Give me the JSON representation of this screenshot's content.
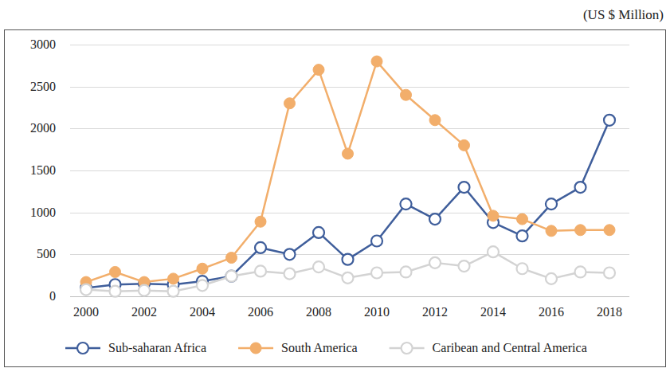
{
  "chart_data": {
    "type": "line",
    "ylabel": "(US $ Million)",
    "x": [
      2000,
      2001,
      2002,
      2003,
      2004,
      2005,
      2006,
      2007,
      2008,
      2009,
      2010,
      2011,
      2012,
      2013,
      2014,
      2015,
      2016,
      2017,
      2018
    ],
    "series": [
      {
        "name": "Sub-saharan Africa",
        "color": "#3f5e9b",
        "marker": "open_circle",
        "values": [
          100,
          140,
          150,
          140,
          180,
          240,
          580,
          500,
          760,
          440,
          660,
          1100,
          920,
          1300,
          880,
          720,
          1100,
          1300,
          2100
        ]
      },
      {
        "name": "South America",
        "color": "#f2ae6b",
        "marker": "circle",
        "values": [
          170,
          290,
          170,
          210,
          330,
          460,
          890,
          2300,
          2700,
          1700,
          2800,
          2400,
          2100,
          1800,
          960,
          920,
          780,
          790,
          790
        ]
      },
      {
        "name": "Caribean and Central America",
        "color": "#d3d3d3",
        "marker": "open_circle",
        "values": [
          80,
          60,
          70,
          60,
          130,
          240,
          300,
          270,
          350,
          220,
          280,
          290,
          400,
          360,
          530,
          330,
          210,
          290,
          280
        ]
      }
    ],
    "xlim": [
      2000,
      2018
    ],
    "xticks": [
      2000,
      2002,
      2004,
      2006,
      2008,
      2010,
      2012,
      2014,
      2016,
      2018
    ],
    "ylim": [
      0,
      3000
    ],
    "yticks": [
      0,
      500,
      1000,
      1500,
      2000,
      2500,
      3000
    ],
    "grid": true,
    "legend": "bottom"
  }
}
